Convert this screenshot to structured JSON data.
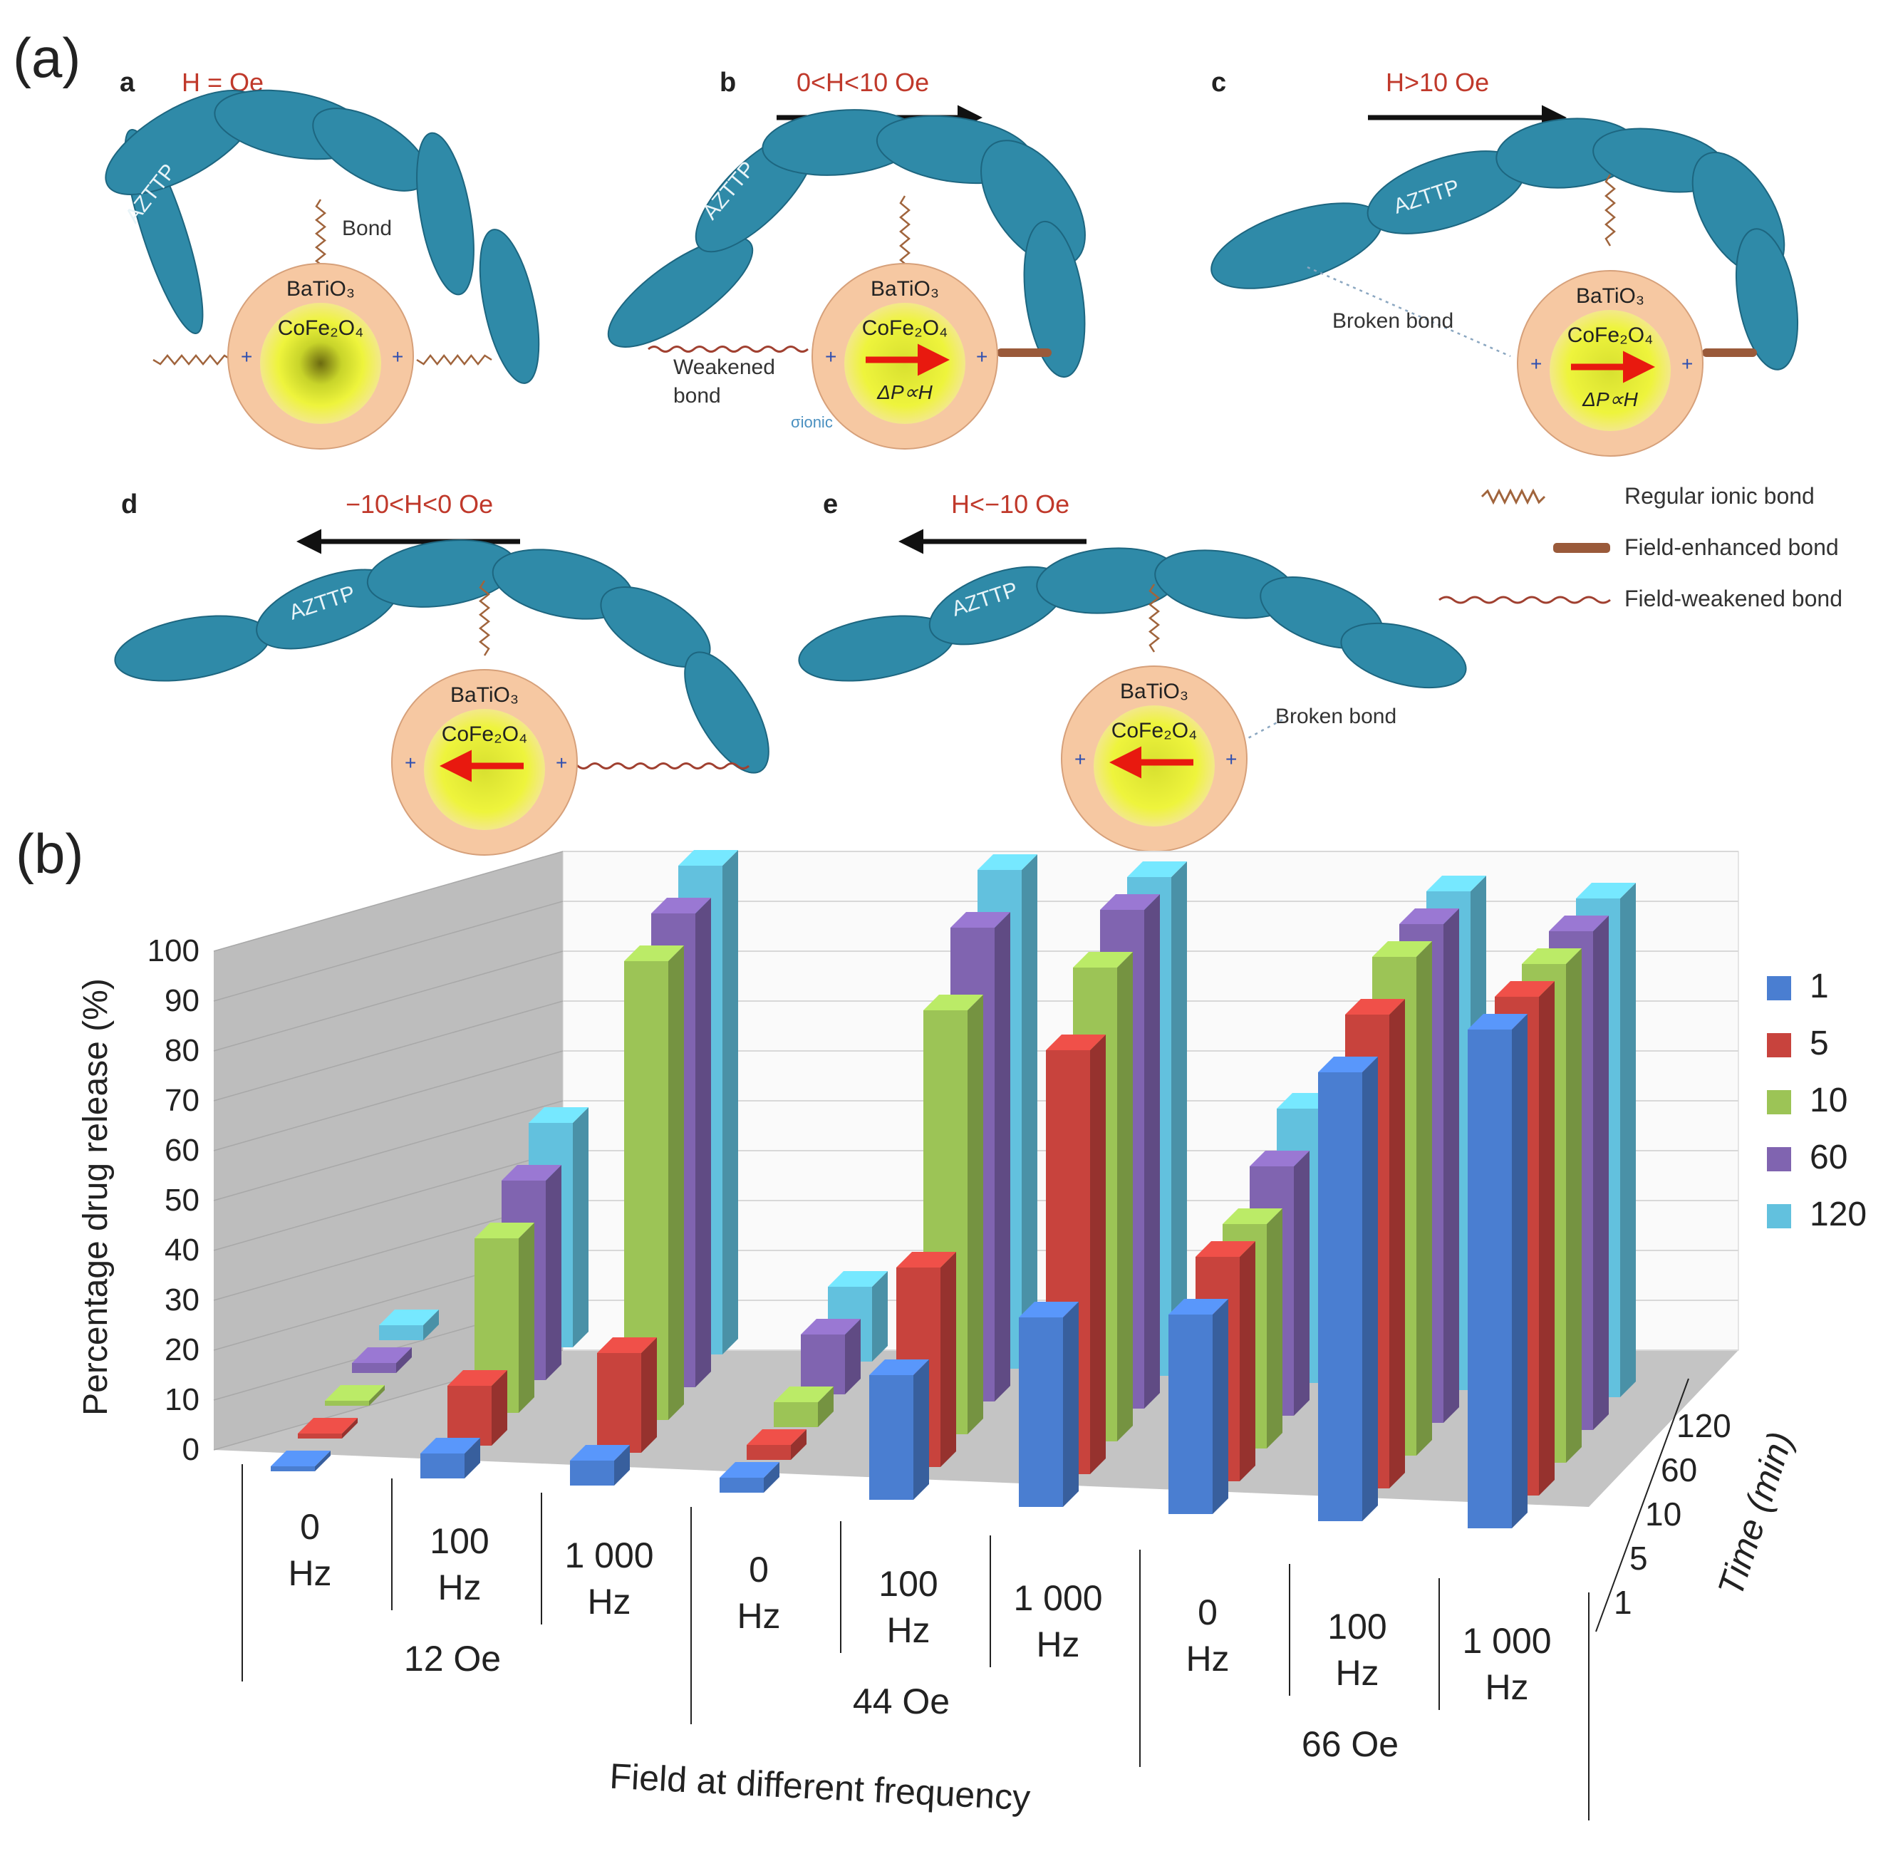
{
  "panel_a": {
    "label": "(a)",
    "subpanels": [
      {
        "id": "a",
        "field": "H = Oe"
      },
      {
        "id": "b",
        "field": "0<H<10 Oe"
      },
      {
        "id": "c",
        "field": "H>10 Oe"
      },
      {
        "id": "d",
        "field": "−10<H<0 Oe"
      },
      {
        "id": "e",
        "field": "H<−10 Oe"
      }
    ],
    "polymer_label": "AZTTP",
    "core_label": "CoFe₂O₄",
    "shell_label": "BaTiO₃",
    "polarization_label": "ΔP∝H",
    "annotations": {
      "bond": "Bond",
      "weakened_line1": "Weakened",
      "weakened_line2": "bond",
      "broken_bond": "Broken bond",
      "sigma_ionic": "σionic"
    },
    "legend": [
      {
        "label": "Regular ionic bond",
        "style": "zigzag"
      },
      {
        "label": "Field-enhanced bond",
        "style": "thick"
      },
      {
        "label": "Field-weakened bond",
        "style": "wave"
      }
    ],
    "colors": {
      "polymer": "#2f8aa8",
      "shell": "#f6c8a2",
      "core": "#e8f238",
      "field_text": "#c0392b",
      "arrow": "#e8190f"
    }
  },
  "panel_b": {
    "label": "(b)",
    "chart_data": {
      "type": "bar",
      "layout": "3d-bar",
      "xlabel": "Field at different frequency",
      "ylabel": "Percentage drug release (%)",
      "zlabel": "Time (min)",
      "ylim": [
        0,
        100
      ],
      "yticks": [
        0,
        10,
        20,
        30,
        40,
        50,
        60,
        70,
        80,
        90,
        100
      ],
      "categories": [
        {
          "field": "12 Oe",
          "frequency": [
            "0",
            "Hz"
          ]
        },
        {
          "field": "12 Oe",
          "frequency": [
            "100",
            "Hz"
          ]
        },
        {
          "field": "12 Oe",
          "frequency": [
            "1 000",
            "Hz"
          ]
        },
        {
          "field": "44 Oe",
          "frequency": [
            "0",
            "Hz"
          ]
        },
        {
          "field": "44 Oe",
          "frequency": [
            "100",
            "Hz"
          ]
        },
        {
          "field": "44 Oe",
          "frequency": [
            "1 000",
            "Hz"
          ]
        },
        {
          "field": "66 Oe",
          "frequency": [
            "0",
            "Hz"
          ]
        },
        {
          "field": "66 Oe",
          "frequency": [
            "100",
            "Hz"
          ]
        },
        {
          "field": "66 Oe",
          "frequency": [
            "1 000",
            "Hz"
          ]
        }
      ],
      "field_groups": [
        "12 Oe",
        "44 Oe",
        "66 Oe"
      ],
      "series": [
        {
          "name": "1",
          "color": "#4a7ed1",
          "values": [
            1,
            5,
            5,
            3,
            25,
            38,
            40,
            90,
            100
          ]
        },
        {
          "name": "5",
          "color": "#c8433d",
          "values": [
            1,
            12,
            20,
            3,
            40,
            85,
            45,
            95,
            100
          ]
        },
        {
          "name": "10",
          "color": "#9cc456",
          "values": [
            1,
            35,
            92,
            5,
            85,
            95,
            45,
            100,
            100
          ]
        },
        {
          "name": "60",
          "color": "#8064b0",
          "values": [
            2,
            40,
            95,
            12,
            95,
            100,
            50,
            100,
            100
          ]
        },
        {
          "name": "120",
          "color": "#62c1de",
          "values": [
            3,
            45,
            98,
            15,
            100,
            100,
            55,
            100,
            100
          ]
        }
      ],
      "legend_position": "right"
    }
  }
}
